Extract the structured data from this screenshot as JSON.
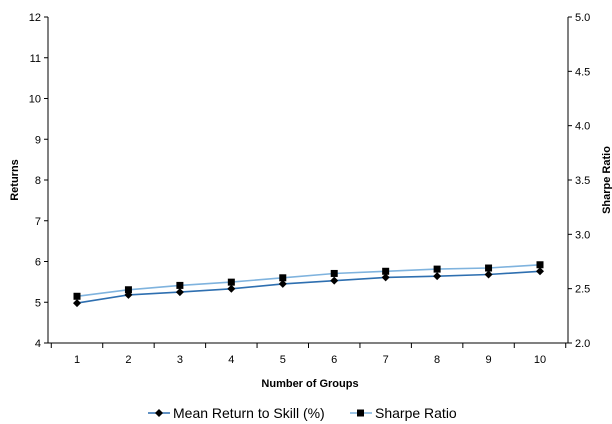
{
  "chart_data": {
    "type": "line",
    "title": "",
    "xlabel": "Number of Groups",
    "ylabel": "Returns",
    "y2label": "Sharpe Ratio",
    "categories": [
      "1",
      "2",
      "3",
      "4",
      "5",
      "6",
      "7",
      "8",
      "9",
      "10"
    ],
    "x": [
      1,
      2,
      3,
      4,
      5,
      6,
      7,
      8,
      9,
      10
    ],
    "ylim": [
      4,
      12
    ],
    "y2lim": [
      2.0,
      5.0
    ],
    "yticks": [
      "4",
      "5",
      "6",
      "7",
      "8",
      "9",
      "10",
      "11",
      "12"
    ],
    "y2ticks": [
      "2.0",
      "2.5",
      "3.0",
      "3.5",
      "4.0",
      "4.5",
      "5.0"
    ],
    "grid": false,
    "legend_position": "bottom",
    "series": [
      {
        "name": "Mean Return to Skill (%)",
        "axis": "left",
        "marker": "diamond",
        "color": "#2E6FB0",
        "values": [
          4.98,
          5.18,
          5.25,
          5.33,
          5.45,
          5.53,
          5.61,
          5.64,
          5.68,
          5.76
        ]
      },
      {
        "name": "Sharpe Ratio",
        "axis": "right",
        "marker": "square",
        "color": "#7FB3DE",
        "values": [
          2.43,
          2.49,
          2.53,
          2.56,
          2.6,
          2.64,
          2.66,
          2.68,
          2.69,
          2.72
        ]
      }
    ]
  }
}
